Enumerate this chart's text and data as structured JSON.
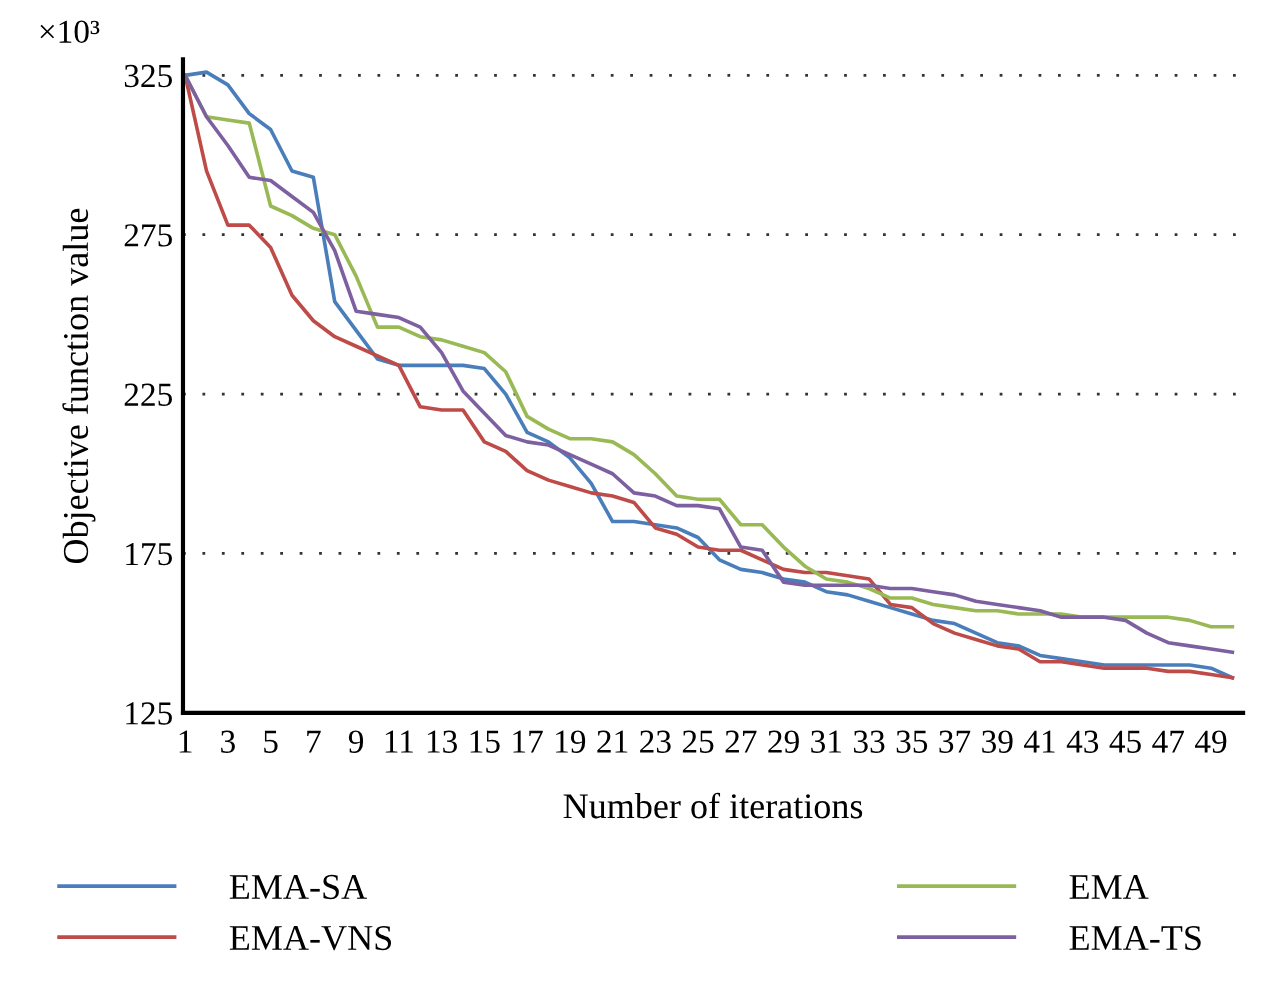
{
  "chart_data": {
    "type": "line",
    "xlabel": "Number of iterations",
    "ylabel": "Objective function value",
    "annotations": [
      "×10³"
    ],
    "categories": [
      "1",
      null,
      "3",
      null,
      "5",
      null,
      "7",
      null,
      "9",
      null,
      "11",
      null,
      "13",
      null,
      "15",
      null,
      "17",
      null,
      "19",
      null,
      "21",
      null,
      "23",
      null,
      "25",
      null,
      "27",
      null,
      "29",
      null,
      "31",
      null,
      "33",
      null,
      "35",
      null,
      "37",
      null,
      "39",
      null,
      "41",
      null,
      "43",
      null,
      "45",
      null,
      "47",
      null,
      "49",
      null
    ],
    "series": [
      {
        "name": "EMA-SA",
        "color": "#4a7ebb",
        "values": [
          325,
          326,
          322,
          313,
          308,
          295,
          293,
          254,
          245,
          236,
          234,
          234,
          234,
          234,
          233,
          225,
          213,
          210,
          205,
          197,
          185,
          185,
          184,
          183,
          180,
          173,
          170,
          169,
          167,
          166,
          163,
          162,
          160,
          158,
          156,
          154,
          153,
          150,
          147,
          146,
          143,
          142,
          141,
          140,
          140,
          140,
          140,
          140,
          139,
          136
        ]
      },
      {
        "name": "EMA-VNS",
        "color": "#be4b48",
        "values": [
          325,
          295,
          278,
          278,
          271,
          256,
          248,
          243,
          240,
          237,
          234,
          221,
          220,
          220,
          210,
          207,
          201,
          198,
          196,
          194,
          193,
          191,
          183,
          181,
          177,
          176,
          176,
          173,
          170,
          169,
          169,
          168,
          167,
          159,
          158,
          153,
          150,
          148,
          146,
          145,
          141,
          141,
          140,
          139,
          139,
          139,
          138,
          138,
          137,
          136
        ]
      },
      {
        "name": "EMA",
        "color": "#98b954",
        "values": [
          325,
          312,
          311,
          310,
          284,
          281,
          277,
          275,
          262,
          246,
          246,
          243,
          242,
          240,
          238,
          232,
          218,
          214,
          211,
          211,
          210,
          206,
          200,
          193,
          192,
          192,
          184,
          184,
          177,
          171,
          167,
          166,
          164,
          161,
          161,
          159,
          158,
          157,
          157,
          156,
          156,
          156,
          155,
          155,
          155,
          155,
          155,
          154,
          152,
          152
        ]
      },
      {
        "name": "EMA-TS",
        "color": "#7d60a0",
        "values": [
          325,
          312,
          303,
          293,
          292,
          287,
          282,
          270,
          251,
          250,
          249,
          246,
          238,
          226,
          219,
          212,
          210,
          209,
          206,
          203,
          200,
          194,
          193,
          190,
          190,
          189,
          177,
          176,
          166,
          165,
          165,
          165,
          165,
          164,
          164,
          163,
          162,
          160,
          159,
          158,
          157,
          155,
          155,
          155,
          154,
          150,
          147,
          146,
          145,
          144
        ]
      }
    ],
    "ylim": [
      125,
      330
    ],
    "yticks": [
      125,
      175,
      225,
      275,
      325
    ],
    "grid": "y",
    "legend": "bottom",
    "marker": "none",
    "line_style": "solid"
  }
}
